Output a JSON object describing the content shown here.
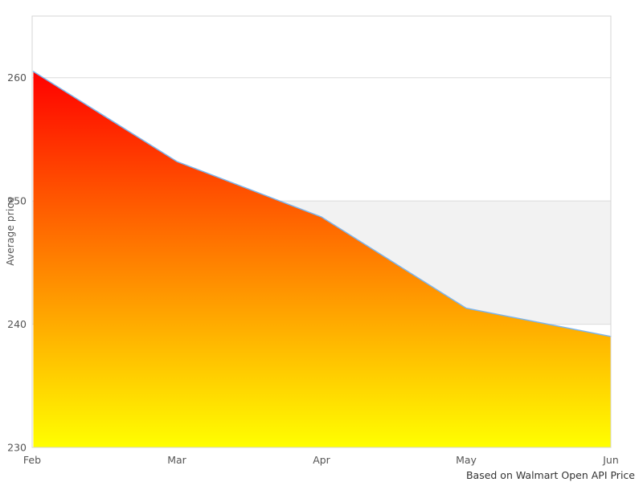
{
  "chart_data": {
    "type": "area",
    "categories": [
      "Feb",
      "Mar",
      "Apr",
      "May",
      "Jun"
    ],
    "values": [
      260.5,
      253.2,
      248.7,
      241.3,
      239
    ],
    "title": "",
    "xlabel": "",
    "ylabel": "Average price",
    "caption": "Based on Walmart Open API Price",
    "ylim": [
      230,
      265
    ],
    "yticks": [
      230,
      240,
      250,
      260
    ],
    "grid": true,
    "legend": "none",
    "plot_band": {
      "from": 240,
      "to": 250,
      "color": "#f2f2f2"
    },
    "colors": {
      "line": "#7cb5ec",
      "fill_top": "#ff0000",
      "fill_bottom": "#ffff00",
      "gridline": "#dcdcdc",
      "plot_border": "#d4d4d4",
      "tick_label": "#555555",
      "axis_title": "#555555",
      "caption_text": "#333333",
      "background": "#ffffff"
    }
  }
}
